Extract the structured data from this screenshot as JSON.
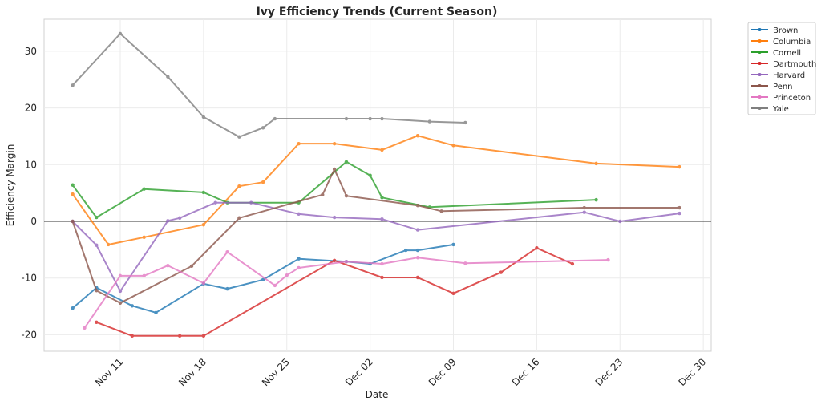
{
  "chart_data": {
    "type": "line",
    "title": "Ivy Efficiency Trends (Current Season)",
    "xlabel": "Date",
    "ylabel": "Efficiency Margin",
    "xlim": [
      "Nov 04",
      "Dec 31"
    ],
    "ylim": [
      -22.9,
      35.6
    ],
    "x_ticks": [
      "Nov 11",
      "Nov 18",
      "Nov 25",
      "Dec 02",
      "Dec 09",
      "Dec 16",
      "Dec 23",
      "Dec 30"
    ],
    "y_ticks": [
      -20,
      -10,
      0,
      10,
      20,
      30
    ],
    "grid": true,
    "reference_line": 0,
    "legend_position": "outside-top-right",
    "series": [
      {
        "name": "Brown",
        "color": "#1f77b4",
        "x": [
          "Nov 07",
          "Nov 09",
          "Nov 12",
          "Nov 14",
          "Nov 18",
          "Nov 20",
          "Nov 23",
          "Nov 26",
          "Nov 30",
          "Dec 02",
          "Dec 05",
          "Dec 06",
          "Dec 09"
        ],
        "values": [
          -15.3,
          -11.7,
          -14.9,
          -16.1,
          -11.0,
          -11.9,
          -10.3,
          -6.6,
          -7.1,
          -7.5,
          -5.1,
          -5.1,
          -4.1
        ]
      },
      {
        "name": "Columbia",
        "color": "#ff7f0e",
        "x": [
          "Nov 07",
          "Nov 10",
          "Nov 13",
          "Nov 18",
          "Nov 21",
          "Nov 23",
          "Nov 26",
          "Nov 29",
          "Dec 03",
          "Dec 06",
          "Dec 09",
          "Dec 21",
          "Dec 28"
        ],
        "values": [
          4.8,
          -4.1,
          -2.8,
          -0.6,
          6.2,
          6.9,
          13.7,
          13.7,
          12.6,
          15.1,
          13.4,
          10.2,
          9.6
        ]
      },
      {
        "name": "Cornell",
        "color": "#2ca02c",
        "x": [
          "Nov 07",
          "Nov 09",
          "Nov 13",
          "Nov 18",
          "Nov 20",
          "Nov 26",
          "Nov 30",
          "Dec 02",
          "Dec 03",
          "Dec 07",
          "Dec 21"
        ],
        "values": [
          6.4,
          0.7,
          5.7,
          5.1,
          3.3,
          3.3,
          10.5,
          8.1,
          4.2,
          2.5,
          3.8
        ]
      },
      {
        "name": "Dartmouth",
        "color": "#d62728",
        "x": [
          "Nov 09",
          "Nov 12",
          "Nov 16",
          "Nov 18",
          "Nov 29",
          "Dec 03",
          "Dec 06",
          "Dec 09",
          "Dec 13",
          "Dec 16",
          "Dec 19"
        ],
        "values": [
          -17.8,
          -20.2,
          -20.2,
          -20.2,
          -6.9,
          -9.9,
          -9.9,
          -12.7,
          -9.0,
          -4.7,
          -7.5
        ]
      },
      {
        "name": "Harvard",
        "color": "#9467bd",
        "x": [
          "Nov 07",
          "Nov 09",
          "Nov 11",
          "Nov 15",
          "Nov 16",
          "Nov 19",
          "Nov 22",
          "Nov 26",
          "Nov 29",
          "Dec 03",
          "Dec 06",
          "Dec 20",
          "Dec 23",
          "Dec 28"
        ],
        "values": [
          0.0,
          -4.2,
          -12.3,
          0.1,
          0.6,
          3.3,
          3.3,
          1.3,
          0.7,
          0.4,
          -1.5,
          1.6,
          0.0,
          1.4
        ]
      },
      {
        "name": "Penn",
        "color": "#8c564b",
        "x": [
          "Nov 07",
          "Nov 09",
          "Nov 11",
          "Nov 17",
          "Nov 21",
          "Nov 28",
          "Nov 29",
          "Nov 30",
          "Dec 06",
          "Dec 08",
          "Dec 20",
          "Dec 28"
        ],
        "values": [
          0.0,
          -12.2,
          -14.4,
          -7.9,
          0.6,
          4.7,
          9.2,
          4.5,
          2.8,
          1.8,
          2.4,
          2.4
        ]
      },
      {
        "name": "Princeton",
        "color": "#e377c2",
        "x": [
          "Nov 08",
          "Nov 11",
          "Nov 13",
          "Nov 15",
          "Nov 18",
          "Nov 20",
          "Nov 24",
          "Nov 25",
          "Nov 26",
          "Nov 30",
          "Dec 03",
          "Dec 06",
          "Dec 10",
          "Dec 22"
        ],
        "values": [
          -18.8,
          -9.6,
          -9.6,
          -7.8,
          -10.9,
          -5.4,
          -11.3,
          -9.5,
          -8.2,
          -7.1,
          -7.5,
          -6.4,
          -7.4,
          -6.8
        ]
      },
      {
        "name": "Yale",
        "color": "#7f7f7f",
        "x": [
          "Nov 07",
          "Nov 11",
          "Nov 15",
          "Nov 18",
          "Nov 21",
          "Nov 23",
          "Nov 24",
          "Nov 30",
          "Dec 02",
          "Dec 03",
          "Dec 07",
          "Dec 10"
        ],
        "values": [
          24.0,
          33.1,
          25.5,
          18.4,
          14.9,
          16.5,
          18.1,
          18.1,
          18.1,
          18.1,
          17.6,
          17.4
        ]
      }
    ]
  }
}
